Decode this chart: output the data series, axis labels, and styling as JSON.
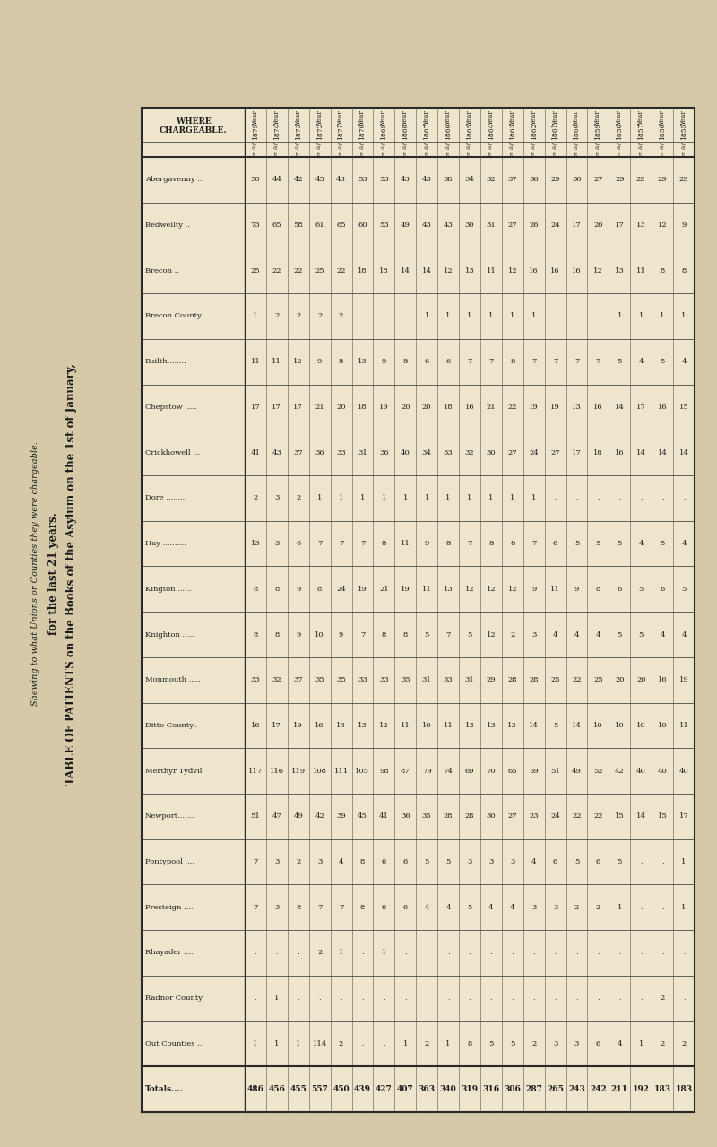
{
  "title1": "TABLE OF PATIENTS on the Books of the Asylum on the 1st of January,",
  "title2": "for the last 21 years.",
  "subtitle": "Shewing to what Unions or Counties they were chargeable.",
  "bg_color": "#D6C9A8",
  "table_bg": "#EDE5CC",
  "years": [
    "Year\n1855",
    "Year\n1856",
    "Year\n1857",
    "Year\n1858",
    "Year\n1859",
    "Year\n1860",
    "Year\n1861",
    "Year\n1862",
    "Year\n1863",
    "Year\n1864",
    "Year\n1865",
    "Year\n1866",
    "Year\n1867",
    "Year\n1868",
    "Year\n1869",
    "Year\n1870",
    "Year\n1871",
    "Year\n1872",
    "Year\n1873",
    "Year\n1874",
    "Year\n1875"
  ],
  "row_labels": [
    "Abergavenny ..",
    "Bedwellty ..",
    "Brecon ..",
    "Brecon County",
    "Builth........",
    "Chepstow .....",
    "Crickhowell ...",
    "Dore .........",
    "Hay ..........",
    "Kington ......",
    "Knighton .....",
    "Monmouth .....",
    "Ditto County..",
    "Merthyr Tydvil",
    "Newport.......",
    "Pontypool ....",
    "Presteign ....",
    "Rhayader ....",
    "Radnor County",
    "Out Counties ..",
    "Totals...."
  ],
  "data": [
    [
      29,
      29,
      29,
      29,
      27,
      30,
      29,
      36,
      37,
      32,
      34,
      38,
      43,
      43,
      53,
      53,
      43,
      45,
      42,
      44,
      50
    ],
    [
      9,
      12,
      13,
      17,
      20,
      17,
      24,
      26,
      27,
      31,
      30,
      43,
      43,
      49,
      53,
      60,
      65,
      61,
      58,
      65,
      73
    ],
    [
      8,
      8,
      11,
      13,
      12,
      16,
      16,
      16,
      12,
      11,
      13,
      12,
      14,
      14,
      18,
      18,
      22,
      25,
      22,
      22,
      25
    ],
    [
      1,
      1,
      1,
      1,
      ".",
      ".",
      ".",
      1,
      1,
      1,
      1,
      1,
      1,
      ".",
      ".",
      ".",
      2,
      2,
      2,
      2,
      1
    ],
    [
      4,
      5,
      4,
      5,
      7,
      7,
      7,
      7,
      8,
      7,
      7,
      6,
      6,
      8,
      9,
      13,
      8,
      9,
      12,
      11,
      11
    ],
    [
      15,
      16,
      17,
      14,
      16,
      13,
      19,
      19,
      22,
      21,
      16,
      18,
      20,
      20,
      19,
      18,
      20,
      21,
      17,
      17,
      17
    ],
    [
      14,
      14,
      14,
      16,
      18,
      17,
      27,
      24,
      27,
      30,
      32,
      33,
      34,
      40,
      36,
      31,
      33,
      36,
      37,
      43,
      41
    ],
    [
      ".",
      ".",
      ".",
      ".",
      ".",
      ".",
      ".",
      1,
      1,
      1,
      1,
      1,
      1,
      1,
      1,
      1,
      1,
      1,
      2,
      3,
      2
    ],
    [
      4,
      5,
      4,
      5,
      5,
      5,
      6,
      7,
      8,
      8,
      7,
      8,
      9,
      11,
      8,
      7,
      7,
      7,
      6,
      3,
      13
    ],
    [
      5,
      6,
      5,
      6,
      8,
      9,
      11,
      9,
      12,
      12,
      12,
      13,
      11,
      19,
      21,
      19,
      24,
      8,
      9,
      8,
      8
    ],
    [
      4,
      4,
      5,
      5,
      4,
      4,
      4,
      3,
      2,
      12,
      5,
      7,
      5,
      8,
      8,
      7,
      9,
      10,
      9,
      8,
      8
    ],
    [
      19,
      16,
      20,
      20,
      25,
      22,
      25,
      28,
      28,
      29,
      31,
      33,
      31,
      35,
      33,
      33,
      35,
      35,
      37,
      32,
      33
    ],
    [
      11,
      10,
      10,
      10,
      10,
      14,
      5,
      14,
      13,
      13,
      13,
      11,
      10,
      11,
      12,
      13,
      13,
      16,
      19,
      17,
      16
    ],
    [
      40,
      40,
      40,
      42,
      52,
      49,
      51,
      59,
      65,
      70,
      69,
      74,
      79,
      87,
      98,
      105,
      111,
      108,
      119,
      116,
      117
    ],
    [
      17,
      15,
      14,
      15,
      22,
      22,
      24,
      23,
      27,
      30,
      28,
      28,
      35,
      36,
      41,
      45,
      39,
      42,
      49,
      47,
      51
    ],
    [
      1,
      ".",
      ".",
      5,
      6,
      5,
      6,
      4,
      3,
      3,
      3,
      5,
      5,
      6,
      6,
      8,
      4,
      3,
      2,
      3,
      7
    ],
    [
      1,
      ".",
      ".",
      1,
      2,
      2,
      3,
      3,
      4,
      4,
      5,
      4,
      4,
      6,
      6,
      8,
      7,
      7,
      8,
      3,
      7
    ],
    [
      ".",
      ".",
      ".",
      ".",
      ".",
      ".",
      ".",
      ".",
      ".",
      ".",
      ".",
      ".",
      ".",
      ".",
      1,
      ".",
      1,
      2,
      ".",
      ".",
      "."
    ],
    [
      ".",
      2,
      ".",
      ".",
      ".",
      ".",
      ".",
      ".",
      ".",
      ".",
      ".",
      ".",
      ".",
      ".",
      ".",
      ".",
      ".",
      ".",
      ".",
      1,
      "."
    ],
    [
      2,
      2,
      1,
      4,
      6,
      3,
      3,
      2,
      5,
      5,
      8,
      1,
      2,
      1,
      ".",
      ".",
      2,
      114,
      1,
      1,
      1
    ],
    [
      183,
      183,
      192,
      211,
      242,
      243,
      265,
      287,
      306,
      316,
      319,
      340,
      363,
      407,
      427,
      439,
      450,
      557,
      455,
      456,
      486
    ]
  ]
}
